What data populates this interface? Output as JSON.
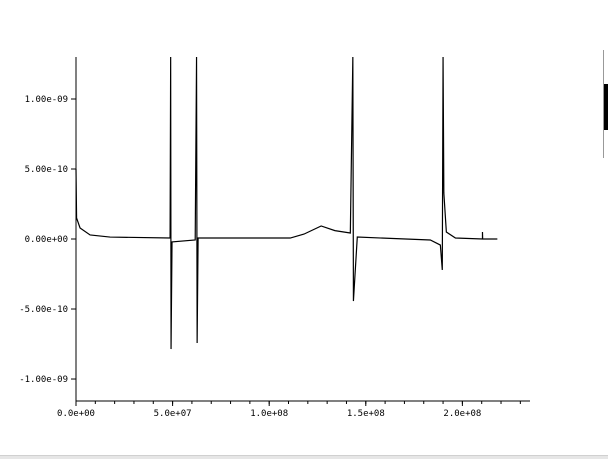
{
  "chart_data": {
    "type": "line",
    "title": "",
    "xlabel": "",
    "ylabel": "",
    "xlim": [
      0,
      235000000
    ],
    "ylim": [
      -1.157e-09,
      1.3e-09
    ],
    "grid": false,
    "x_ticks": [
      {
        "value": 0,
        "label": "0.0e+00"
      },
      {
        "value": 50000000,
        "label": "5.0e+07"
      },
      {
        "value": 100000000,
        "label": "1.0e+08"
      },
      {
        "value": 150000000,
        "label": "1.5e+08"
      },
      {
        "value": 200000000,
        "label": "2.0e+08"
      }
    ],
    "x_minor_step": 10000000,
    "y_ticks": [
      {
        "value": 1e-09,
        "label": "1.00e-09"
      },
      {
        "value": 5e-10,
        "label": "5.00e-10"
      },
      {
        "value": 0,
        "label": "0.00e+00"
      },
      {
        "value": -5e-10,
        "label": "-5.00e-10"
      },
      {
        "value": -1e-09,
        "label": "-1.00e-09"
      }
    ],
    "series": [
      {
        "color": "#000000",
        "points": [
          [
            0,
            5e-10
          ],
          [
            300000,
            1.5e-10
          ],
          [
            2100000,
            7.9e-11
          ],
          [
            7300000,
            2.9e-11
          ],
          [
            17600000,
            1.4e-11
          ],
          [
            48700000,
            7e-12
          ],
          [
            49000000,
            1.3e-09
          ],
          [
            49200000,
            -7.86e-10
          ],
          [
            49700000,
            -2.1e-11
          ],
          [
            61700000,
            -7e-12
          ],
          [
            62400000,
            1.3e-09
          ],
          [
            62700000,
            -7.43e-10
          ],
          [
            63200000,
            7e-12
          ],
          [
            110900000,
            7e-12
          ],
          [
            118000000,
            3.5e-11
          ],
          [
            126900000,
            9.3e-11
          ],
          [
            134000000,
            6e-11
          ],
          [
            142000000,
            4.3e-11
          ],
          [
            143300000,
            1.3e-09
          ],
          [
            143600000,
            -4.43e-10
          ],
          [
            145600000,
            1.4e-11
          ],
          [
            183400000,
            -7e-12
          ],
          [
            188600000,
            -4.3e-11
          ],
          [
            189600000,
            -2.21e-10
          ],
          [
            190000000,
            1.3e-09
          ],
          [
            190400000,
            3.29e-10
          ],
          [
            191700000,
            5e-11
          ],
          [
            196400000,
            7e-12
          ],
          [
            210400000,
            0
          ],
          [
            210400000,
            5e-11
          ],
          [
            210500000,
            0
          ],
          [
            218100000,
            0
          ]
        ]
      }
    ]
  }
}
